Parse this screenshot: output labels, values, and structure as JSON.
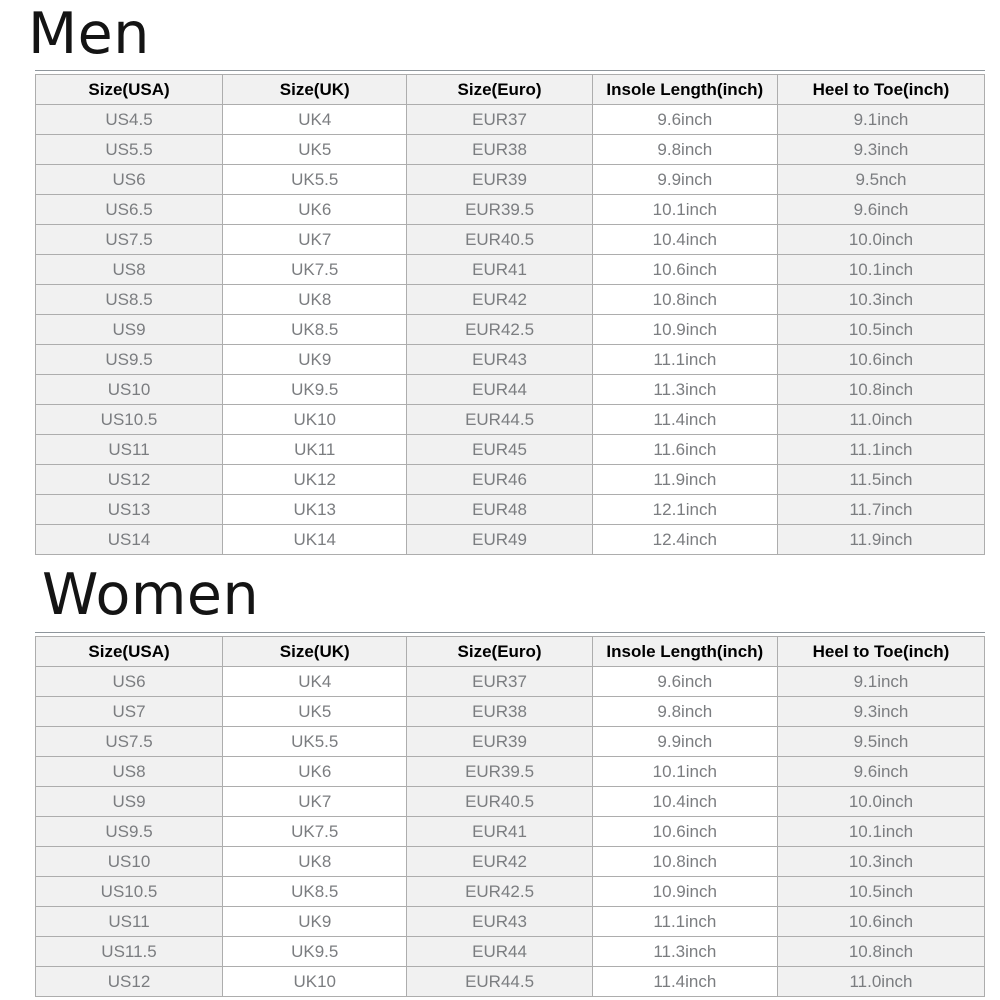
{
  "page": {
    "background": "#ffffff"
  },
  "colors": {
    "header_bg": "#f1f1f1",
    "shaded_column_bg": "#f1f1f1",
    "white_column_bg": "#ffffff",
    "cell_border": "#adadad",
    "table_top_border": "#8f969c",
    "header_text": "#000000",
    "cell_text": "#7b7d80",
    "title_text": "#141414"
  },
  "sections": [
    {
      "title": "Men",
      "columns": [
        "Size(USA)",
        "Size(UK)",
        "Size(Euro)",
        "Insole Length(inch)",
        "Heel to Toe(inch)"
      ],
      "rows": [
        [
          "US4.5",
          "UK4",
          "EUR37",
          "9.6inch",
          "9.1inch"
        ],
        [
          "US5.5",
          "UK5",
          "EUR38",
          "9.8inch",
          "9.3inch"
        ],
        [
          "US6",
          "UK5.5",
          "EUR39",
          "9.9inch",
          "9.5nch"
        ],
        [
          "US6.5",
          "UK6",
          "EUR39.5",
          "10.1inch",
          "9.6inch"
        ],
        [
          "US7.5",
          "UK7",
          "EUR40.5",
          "10.4inch",
          "10.0inch"
        ],
        [
          "US8",
          "UK7.5",
          "EUR41",
          "10.6inch",
          "10.1inch"
        ],
        [
          "US8.5",
          "UK8",
          "EUR42",
          "10.8inch",
          "10.3inch"
        ],
        [
          "US9",
          "UK8.5",
          "EUR42.5",
          "10.9inch",
          "10.5inch"
        ],
        [
          "US9.5",
          "UK9",
          "EUR43",
          "11.1inch",
          "10.6inch"
        ],
        [
          "US10",
          "UK9.5",
          "EUR44",
          "11.3inch",
          "10.8inch"
        ],
        [
          "US10.5",
          "UK10",
          "EUR44.5",
          "11.4inch",
          "11.0inch"
        ],
        [
          "US11",
          "UK11",
          "EUR45",
          "11.6inch",
          "11.1inch"
        ],
        [
          "US12",
          "UK12",
          "EUR46",
          "11.9inch",
          "11.5inch"
        ],
        [
          "US13",
          "UK13",
          "EUR48",
          "12.1inch",
          "11.7inch"
        ],
        [
          "US14",
          "UK14",
          "EUR49",
          "12.4inch",
          "11.9inch"
        ]
      ]
    },
    {
      "title": "Women",
      "columns": [
        "Size(USA)",
        "Size(UK)",
        "Size(Euro)",
        "Insole Length(inch)",
        "Heel to Toe(inch)"
      ],
      "rows": [
        [
          "US6",
          "UK4",
          "EUR37",
          "9.6inch",
          "9.1inch"
        ],
        [
          "US7",
          "UK5",
          "EUR38",
          "9.8inch",
          "9.3inch"
        ],
        [
          "US7.5",
          "UK5.5",
          "EUR39",
          "9.9inch",
          "9.5inch"
        ],
        [
          "US8",
          "UK6",
          "EUR39.5",
          "10.1inch",
          "9.6inch"
        ],
        [
          "US9",
          "UK7",
          "EUR40.5",
          "10.4inch",
          "10.0inch"
        ],
        [
          "US9.5",
          "UK7.5",
          "EUR41",
          "10.6inch",
          "10.1inch"
        ],
        [
          "US10",
          "UK8",
          "EUR42",
          "10.8inch",
          "10.3inch"
        ],
        [
          "US10.5",
          "UK8.5",
          "EUR42.5",
          "10.9inch",
          "10.5inch"
        ],
        [
          "US11",
          "UK9",
          "EUR43",
          "11.1inch",
          "10.6inch"
        ],
        [
          "US11.5",
          "UK9.5",
          "EUR44",
          "11.3inch",
          "10.8inch"
        ],
        [
          "US12",
          "UK10",
          "EUR44.5",
          "11.4inch",
          "11.0inch"
        ]
      ]
    }
  ]
}
